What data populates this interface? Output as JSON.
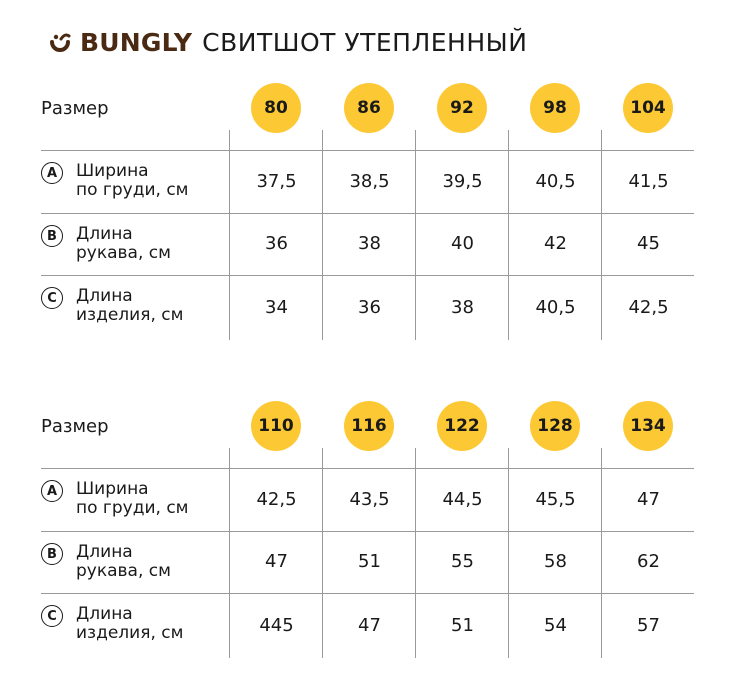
{
  "header": {
    "brand": "BUNGLY",
    "product": "СВИТШОТ УТЕПЛЕННЫЙ",
    "logo_icon": "bungly-logo-icon",
    "brand_color": "#4a2a12"
  },
  "accent_color": "#fcc934",
  "tables": [
    {
      "size_label": "Размер",
      "sizes": [
        "80",
        "86",
        "92",
        "98",
        "104"
      ],
      "rows": [
        {
          "badge": "A",
          "label_line1": "Ширина",
          "label_line2": "по груди, см",
          "values": [
            "37,5",
            "38,5",
            "39,5",
            "40,5",
            "41,5"
          ]
        },
        {
          "badge": "B",
          "label_line1": "Длина",
          "label_line2": "рукава, см",
          "values": [
            "36",
            "38",
            "40",
            "42",
            "45"
          ]
        },
        {
          "badge": "C",
          "label_line1": "Длина",
          "label_line2": "изделия, см",
          "values": [
            "34",
            "36",
            "38",
            "40,5",
            "42,5"
          ]
        }
      ]
    },
    {
      "size_label": "Размер",
      "sizes": [
        "110",
        "116",
        "122",
        "128",
        "134"
      ],
      "rows": [
        {
          "badge": "A",
          "label_line1": "Ширина",
          "label_line2": "по груди, см",
          "values": [
            "42,5",
            "43,5",
            "44,5",
            "45,5",
            "47"
          ]
        },
        {
          "badge": "B",
          "label_line1": "Длина",
          "label_line2": "рукава, см",
          "values": [
            "47",
            "51",
            "55",
            "58",
            "62"
          ]
        },
        {
          "badge": "C",
          "label_line1": "Длина",
          "label_line2": "изделия, см",
          "values": [
            "445",
            "47",
            "51",
            "54",
            "57"
          ]
        }
      ]
    }
  ]
}
